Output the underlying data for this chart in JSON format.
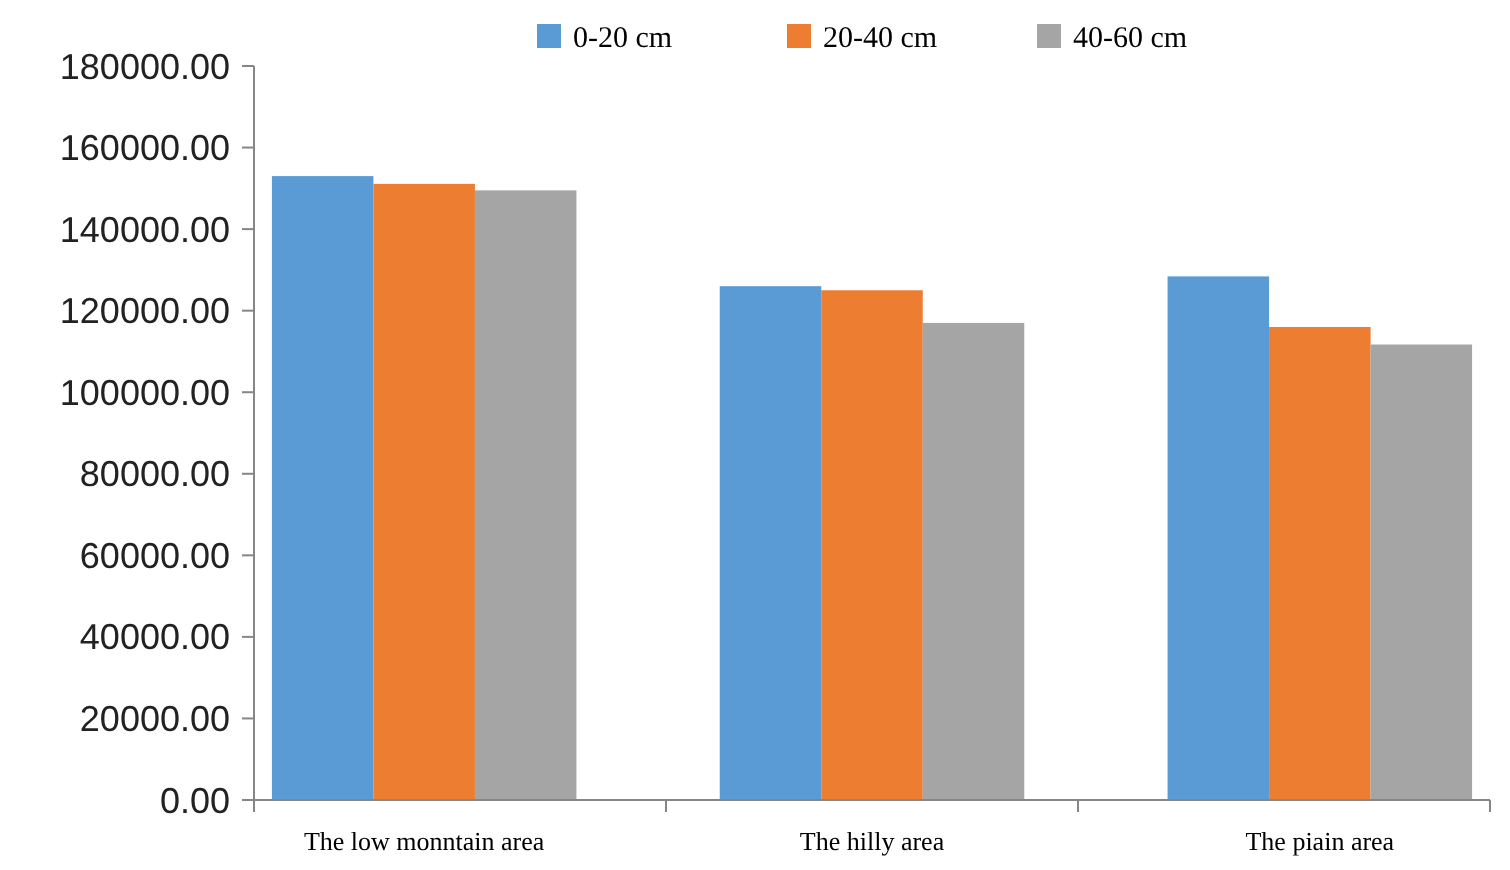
{
  "chart_data": {
    "type": "bar",
    "categories": [
      "The low monntain area",
      "The hilly area",
      "The piain area"
    ],
    "series": [
      {
        "name": "0-20 cm",
        "color": "#5b9bd5",
        "values": [
          153000,
          126000,
          128400
        ]
      },
      {
        "name": "20-40 cm",
        "color": "#ed7d31",
        "values": [
          151100,
          125000,
          116000
        ]
      },
      {
        "name": "40-60 cm",
        "color": "#a5a5a5",
        "values": [
          149500,
          117000,
          111700
        ]
      }
    ],
    "ylim": [
      0,
      180000
    ],
    "yticks": [
      {
        "value": 0,
        "label": "0.00"
      },
      {
        "value": 20000,
        "label": "20000.00"
      },
      {
        "value": 40000,
        "label": "40000.00"
      },
      {
        "value": 60000,
        "label": "60000.00"
      },
      {
        "value": 80000,
        "label": "80000.00"
      },
      {
        "value": 100000,
        "label": "100000.00"
      },
      {
        "value": 120000,
        "label": "120000.00"
      },
      {
        "value": 140000,
        "label": "140000.00"
      },
      {
        "value": 160000,
        "label": "160000.00"
      },
      {
        "value": 180000,
        "label": "180000.00"
      }
    ],
    "legend": "top",
    "grid": false
  }
}
